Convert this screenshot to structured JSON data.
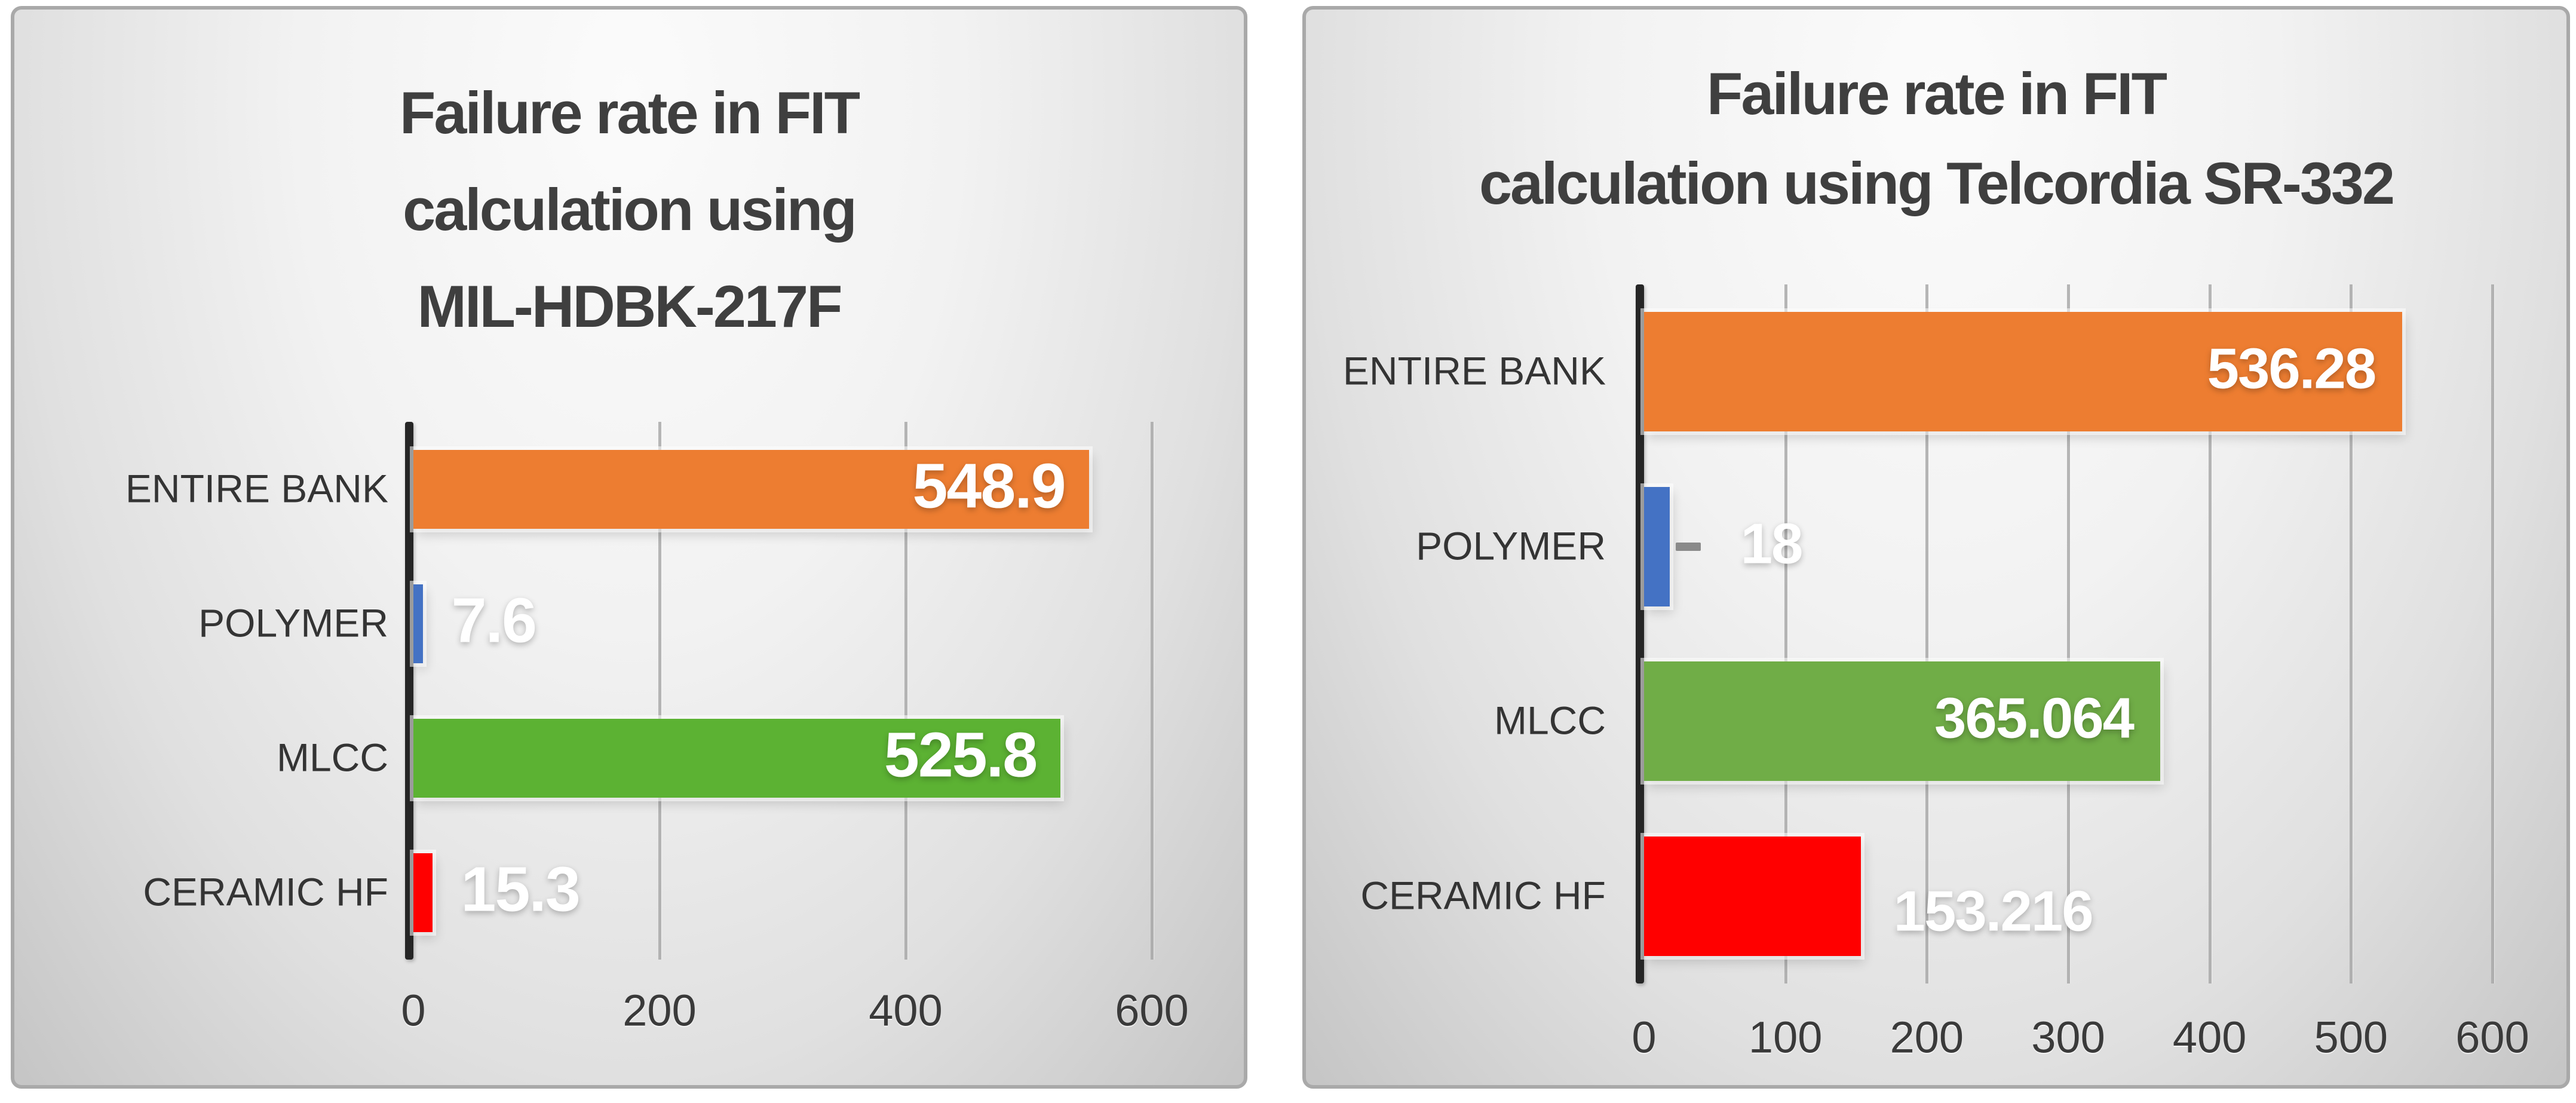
{
  "page": {
    "background": "#FFFFFF"
  },
  "style": {
    "panel_border": "#A9A9A9",
    "panel_bg_top": "#FBFBFB",
    "panel_bg_bottom": "#C5C5C5",
    "title_color": "#3F3F3F",
    "category_label_color": "#343434",
    "tick_label_color": "#3A3A3A",
    "axis_color": "#262626",
    "gridline_color": "#A6A6A6",
    "value_label_color": "#FFFFFF",
    "leader_dash_color": "#8A8A8A"
  },
  "chart_data": [
    {
      "type": "bar",
      "orientation": "horizontal",
      "title": "Failure rate in FIT calculation using MIL-HDBK-217F",
      "title_lines": [
        "Failure rate in FIT",
        "calculation using",
        "MIL-HDBK-217F"
      ],
      "categories": [
        "ENTIRE BANK",
        "POLYMER",
        "MLCC",
        "CERAMIC HF"
      ],
      "values": [
        548.9,
        7.6,
        525.8,
        15.3
      ],
      "value_labels": [
        "548.9",
        "7.6",
        "525.8",
        "15.3"
      ],
      "bar_colors": [
        "#ED7D31",
        "#4472C4",
        "#5CB233",
        "#FF0000"
      ],
      "value_label_inside": [
        true,
        false,
        true,
        false
      ],
      "leader_dash": [
        false,
        false,
        false,
        false
      ],
      "label_dy": [
        0,
        0,
        0,
        0
      ],
      "x_ticks": [
        "0",
        "200",
        "400",
        "600"
      ],
      "x_tick_values": [
        0,
        200,
        400,
        600
      ],
      "xlim": [
        0,
        600
      ],
      "grid": true,
      "legend": "none"
    },
    {
      "type": "bar",
      "orientation": "horizontal",
      "title": "Failure rate in FIT calculation using Telcordia SR-332",
      "title_lines": [
        "Failure rate in FIT",
        "calculation using Telcordia SR-332"
      ],
      "categories": [
        "ENTIRE BANK",
        "POLYMER",
        "MLCC",
        "CERAMIC HF"
      ],
      "values": [
        536.28,
        18,
        365.064,
        153.216
      ],
      "value_labels": [
        "536.28",
        "18",
        "365.064",
        "153.216"
      ],
      "bar_colors": [
        "#ED7D31",
        "#4472C4",
        "#70AD47",
        "#FF0000"
      ],
      "value_label_inside": [
        true,
        false,
        true,
        false
      ],
      "leader_dash": [
        false,
        true,
        false,
        false
      ],
      "label_dy": [
        0,
        0,
        0,
        30
      ],
      "x_ticks": [
        "0",
        "100",
        "200",
        "300",
        "400",
        "500",
        "600"
      ],
      "x_tick_values": [
        0,
        100,
        200,
        300,
        400,
        500,
        600
      ],
      "xlim": [
        0,
        600
      ],
      "grid": true,
      "legend": "none"
    }
  ]
}
